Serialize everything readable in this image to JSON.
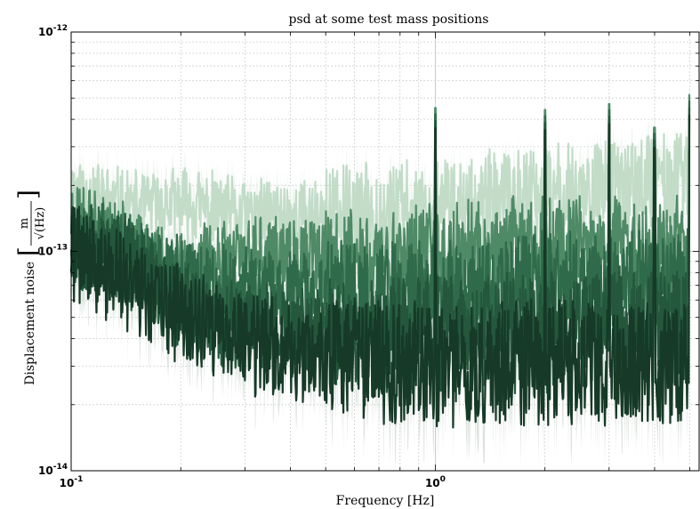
{
  "chart_data": {
    "type": "line",
    "title": "psd at some test mass positions",
    "xlabel": "Frequency [Hz]",
    "ylabel": "Displacement noise",
    "ylabel_unit_num": "m",
    "ylabel_unit_den": "√(Hz)",
    "x_scale": "log",
    "y_scale": "log",
    "xlim": [
      0.1,
      5.3
    ],
    "ylim": [
      1e-14,
      1e-12
    ],
    "grid": true,
    "x_ticks": [
      {
        "value": 0.1,
        "mantissa": "10",
        "exp": "-1"
      },
      {
        "value": 1,
        "mantissa": "10",
        "exp": "0"
      }
    ],
    "y_ticks": [
      {
        "value": 1e-14,
        "mantissa": "10",
        "exp": "-14"
      },
      {
        "value": 1e-13,
        "mantissa": "10",
        "exp": "-13"
      },
      {
        "value": 1e-12,
        "mantissa": "10",
        "exp": "-12"
      }
    ],
    "spikes": [
      {
        "f": 1.0,
        "peak": 4.8e-13
      },
      {
        "f": 2.0,
        "peak": 4.7e-13
      },
      {
        "f": 3.0,
        "peak": 5e-13
      },
      {
        "f": 4.0,
        "peak": 3.9e-13
      },
      {
        "f": 5.0,
        "peak": 5.5e-13
      }
    ],
    "series": [
      {
        "color": "#c2dcc8",
        "band": "#eaf3ec",
        "seed": 11,
        "x": [
          0.1,
          0.15,
          0.2,
          0.3,
          0.5,
          1.0,
          2.0,
          3.0,
          5.0
        ],
        "y": [
          1.9e-13,
          1.55e-13,
          1.65e-13,
          1.45e-13,
          1.45e-13,
          1.55e-13,
          1.8e-13,
          1.95e-13,
          2.1e-13
        ]
      },
      {
        "color": "#4f8a66",
        "band": "#dde9e1",
        "seed": 23,
        "x": [
          0.1,
          0.15,
          0.2,
          0.3,
          0.5,
          1.0,
          2.0,
          3.0,
          5.0
        ],
        "y": [
          1.5e-13,
          1e-13,
          8.5e-14,
          9.5e-14,
          9e-14,
          9.5e-14,
          1.05e-13,
          1e-13,
          1.05e-13
        ]
      },
      {
        "color": "#2f6b4a",
        "band": "#d6e3da",
        "seed": 37,
        "x": [
          0.1,
          0.15,
          0.2,
          0.3,
          0.5,
          1.0,
          2.0,
          3.0,
          5.0
        ],
        "y": [
          1.25e-13,
          9e-14,
          7.5e-14,
          6.5e-14,
          6.2e-14,
          6.3e-14,
          6.8e-14,
          7e-14,
          7.5e-14
        ]
      },
      {
        "color": "#24573c",
        "band": "#d2ddd6",
        "seed": 53,
        "x": [
          0.1,
          0.15,
          0.2,
          0.3,
          0.5,
          1.0,
          2.0,
          3.0,
          5.0
        ],
        "y": [
          1.1e-13,
          8.5e-14,
          5.5e-14,
          4.5e-14,
          4.2e-14,
          4.2e-14,
          4.3e-14,
          4.5e-14,
          4.6e-14
        ]
      },
      {
        "color": "#163a27",
        "band": "#cfd8d2",
        "seed": 71,
        "x": [
          0.1,
          0.15,
          0.2,
          0.3,
          0.5,
          1.0,
          2.0,
          3.0,
          5.0
        ],
        "y": [
          1e-13,
          7e-14,
          5e-14,
          3.8e-14,
          3.3e-14,
          3.1e-14,
          3e-14,
          3e-14,
          3.1e-14
        ]
      }
    ]
  }
}
